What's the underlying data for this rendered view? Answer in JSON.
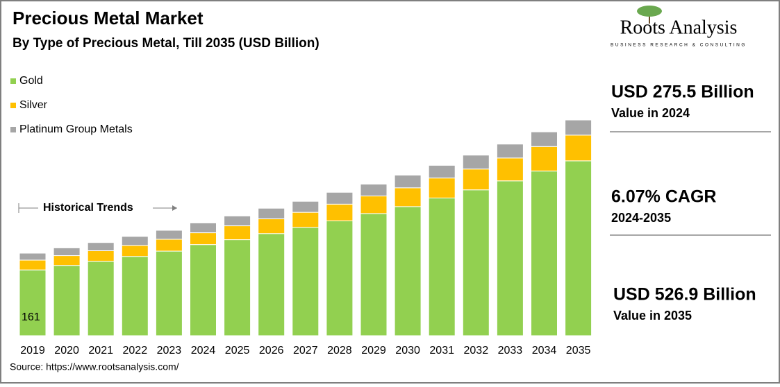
{
  "chart_data": {
    "type": "stacked_bar",
    "title": "Precious Metal Market",
    "subtitle": "By Type of Precious Metal, Till 2035 (USD Billion)",
    "annotation": "Historical Trends",
    "source": "Source: https://www.rootsanalysis.com/",
    "categories": [
      "2019",
      "2020",
      "2021",
      "2022",
      "2023",
      "2024",
      "2025",
      "2026",
      "2027",
      "2028",
      "2029",
      "2030",
      "2031",
      "2032",
      "2033",
      "2034",
      "2035"
    ],
    "series": [
      {
        "name": "Gold",
        "color": "#92d050",
        "values": [
          161,
          172,
          182,
          194,
          207,
          223,
          235,
          250,
          265,
          281,
          299,
          316,
          337,
          357,
          379,
          403,
          428
        ],
        "value_labels": [
          "161",
          null,
          null,
          null,
          null,
          null,
          null,
          null,
          null,
          null,
          null,
          null,
          null,
          null,
          null,
          null,
          null
        ]
      },
      {
        "name": "Silver",
        "color": "#ffc000",
        "values": [
          24,
          24,
          26,
          27,
          29,
          29,
          34,
          36,
          37,
          41,
          43,
          46,
          49,
          51,
          56,
          60,
          63
        ]
      },
      {
        "name": "Platinum Group Metals",
        "color": "#a6a6a6",
        "values": [
          17,
          19,
          20,
          22,
          22,
          24,
          24,
          26,
          27,
          29,
          29,
          31,
          31,
          34,
          34,
          36,
          37
        ]
      }
    ]
  },
  "logo": {
    "name": "Roots Analysis",
    "tagline": "BUSINESS RESEARCH & CONSULTING"
  },
  "highlights": [
    {
      "value": "USD 275.5 Billion",
      "caption": "Value in 2024"
    },
    {
      "value": "6.07% CAGR",
      "caption": "2024-2035"
    },
    {
      "value": "USD 526.9 Billion",
      "caption": "Value in 2035"
    }
  ]
}
